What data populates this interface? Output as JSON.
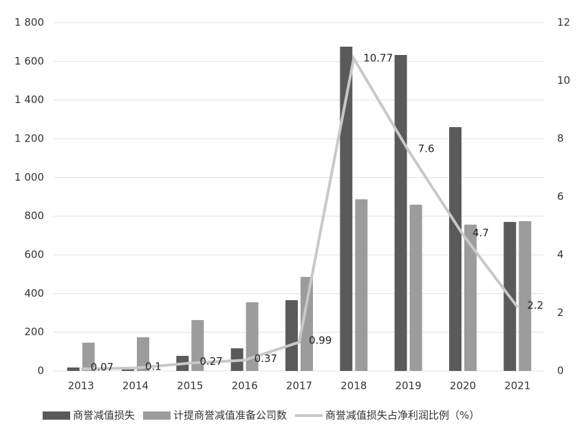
{
  "chart_data": {
    "type": "bar-line",
    "categories": [
      "2013",
      "2014",
      "2015",
      "2016",
      "2017",
      "2018",
      "2019",
      "2020",
      "2021"
    ],
    "series": [
      {
        "name": "商誉减值损失",
        "color": "#5a5a5a",
        "type": "bar",
        "values": [
          18,
          10,
          78,
          117,
          366,
          1676,
          1633,
          1260,
          770
        ]
      },
      {
        "name": "计提商誉减值准备公司数",
        "color": "#9c9c9c",
        "type": "bar",
        "values": [
          146,
          174,
          263,
          355,
          486,
          887,
          859,
          756,
          774
        ]
      },
      {
        "name": "商誉减值损失占净利润比例（%）",
        "color": "#c8c8c8",
        "type": "line",
        "axis": "y2",
        "values": [
          0.07,
          0.1,
          0.27,
          0.37,
          0.99,
          10.77,
          7.6,
          4.7,
          2.2
        ]
      }
    ],
    "ylim": [
      0,
      1800
    ],
    "yticks": [
      0,
      200,
      400,
      600,
      800,
      {
        "value": 1000,
        "label": "1 000"
      },
      {
        "value": 1200,
        "label": "1 200"
      },
      {
        "value": 1400,
        "label": "1 400"
      },
      {
        "value": 1600,
        "label": "1 600"
      },
      {
        "value": 1800,
        "label": "1 800"
      }
    ],
    "y2lim": [
      0,
      12
    ],
    "y2ticks": [
      0,
      2,
      4,
      6,
      8,
      10,
      12
    ],
    "grid": true
  }
}
